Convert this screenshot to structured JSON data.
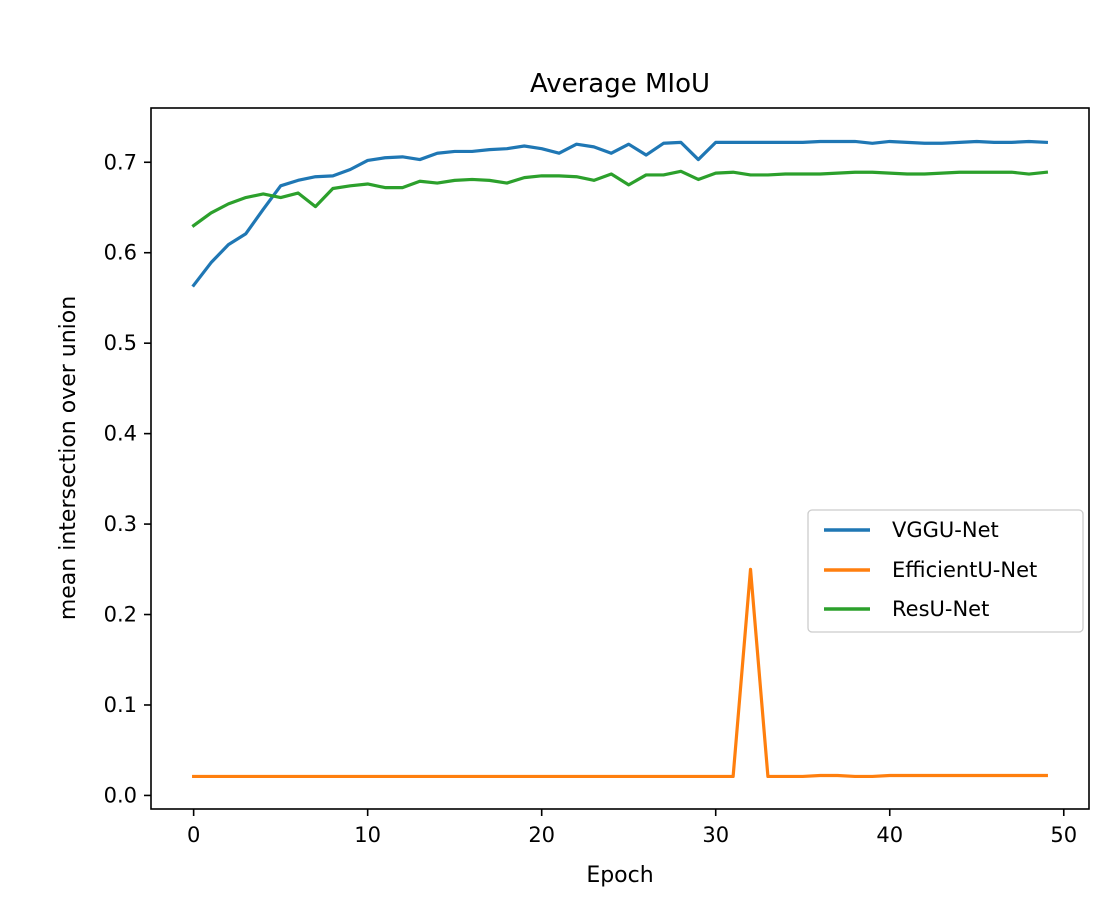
{
  "chart_data": {
    "type": "line",
    "title": "Average MIoU",
    "xlabel": "Epoch",
    "ylabel": "mean intersection over union",
    "xlim": [
      -2.45,
      51.45
    ],
    "ylim": [
      -0.015,
      0.76
    ],
    "xticks": [
      0,
      10,
      20,
      30,
      40,
      50
    ],
    "yticks": [
      0.0,
      0.1,
      0.2,
      0.3,
      0.4,
      0.5,
      0.6,
      0.7
    ],
    "xtick_labels": [
      "0",
      "10",
      "20",
      "30",
      "40",
      "50"
    ],
    "ytick_labels": [
      "0.0",
      "0.1",
      "0.2",
      "0.3",
      "0.4",
      "0.5",
      "0.6",
      "0.7"
    ],
    "grid": false,
    "legend_position": "center-right",
    "x": [
      0,
      1,
      2,
      3,
      4,
      5,
      6,
      7,
      8,
      9,
      10,
      11,
      12,
      13,
      14,
      15,
      16,
      17,
      18,
      19,
      20,
      21,
      22,
      23,
      24,
      25,
      26,
      27,
      28,
      29,
      30,
      31,
      32,
      33,
      34,
      35,
      36,
      37,
      38,
      39,
      40,
      41,
      42,
      43,
      44,
      45,
      46,
      47,
      48,
      49
    ],
    "series": [
      {
        "name": "VGGU-Net",
        "color": "#1f77b4",
        "values": [
          0.564,
          0.589,
          0.609,
          0.621,
          0.648,
          0.674,
          0.68,
          0.684,
          0.685,
          0.692,
          0.702,
          0.705,
          0.706,
          0.703,
          0.71,
          0.712,
          0.712,
          0.714,
          0.715,
          0.718,
          0.715,
          0.71,
          0.72,
          0.717,
          0.71,
          0.72,
          0.708,
          0.721,
          0.722,
          0.703,
          0.722,
          0.722,
          0.722,
          0.722,
          0.722,
          0.722,
          0.723,
          0.723,
          0.723,
          0.721,
          0.723,
          0.722,
          0.721,
          0.721,
          0.722,
          0.723,
          0.722,
          0.722,
          0.723,
          0.722
        ]
      },
      {
        "name": "EfficientU-Net",
        "color": "#ff7f0e",
        "values": [
          0.021,
          0.021,
          0.021,
          0.021,
          0.021,
          0.021,
          0.021,
          0.021,
          0.021,
          0.021,
          0.021,
          0.021,
          0.021,
          0.021,
          0.021,
          0.021,
          0.021,
          0.021,
          0.021,
          0.021,
          0.021,
          0.021,
          0.021,
          0.021,
          0.021,
          0.021,
          0.021,
          0.021,
          0.021,
          0.021,
          0.021,
          0.021,
          0.25,
          0.021,
          0.021,
          0.021,
          0.022,
          0.022,
          0.021,
          0.021,
          0.022,
          0.022,
          0.022,
          0.022,
          0.022,
          0.022,
          0.022,
          0.022,
          0.022,
          0.022
        ]
      },
      {
        "name": "ResU-Net",
        "color": "#2ca02c",
        "values": [
          0.63,
          0.644,
          0.654,
          0.661,
          0.665,
          0.661,
          0.666,
          0.651,
          0.671,
          0.674,
          0.676,
          0.672,
          0.672,
          0.679,
          0.677,
          0.68,
          0.681,
          0.68,
          0.677,
          0.683,
          0.685,
          0.685,
          0.684,
          0.68,
          0.687,
          0.675,
          0.686,
          0.686,
          0.69,
          0.681,
          0.688,
          0.689,
          0.686,
          0.686,
          0.687,
          0.687,
          0.687,
          0.688,
          0.689,
          0.689,
          0.688,
          0.687,
          0.687,
          0.688,
          0.689,
          0.689,
          0.689,
          0.689,
          0.687,
          0.689
        ]
      }
    ]
  }
}
